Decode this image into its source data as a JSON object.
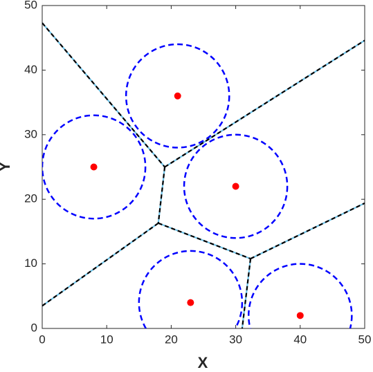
{
  "chart_data": {
    "type": "scatter",
    "xlabel": "X",
    "ylabel": "Y",
    "xlim": [
      0,
      50
    ],
    "ylim": [
      0,
      50
    ],
    "xticks": [
      0,
      10,
      20,
      30,
      40,
      50
    ],
    "yticks": [
      0,
      10,
      20,
      30,
      40,
      50
    ],
    "series": [
      {
        "x": [
          21,
          8,
          30,
          23,
          40
        ],
        "y": [
          36,
          25,
          22,
          4,
          2
        ],
        "radius": [
          8,
          8,
          8,
          8,
          8
        ],
        "color": "#ff0000",
        "circle_color": "#0000ff"
      }
    ],
    "edges": [
      {
        "x": [
          0,
          19
        ],
        "y": [
          47.3,
          25
        ]
      },
      {
        "x": [
          19,
          50
        ],
        "y": [
          25,
          44.6
        ]
      },
      {
        "x": [
          19,
          18
        ],
        "y": [
          25,
          16.3
        ]
      },
      {
        "x": [
          18,
          0
        ],
        "y": [
          16.3,
          3.5
        ]
      },
      {
        "x": [
          18,
          32.3
        ],
        "y": [
          16.3,
          10.8
        ]
      },
      {
        "x": [
          32.3,
          50
        ],
        "y": [
          10.8,
          19.4
        ]
      },
      {
        "x": [
          32.3,
          31
        ],
        "y": [
          10.8,
          0
        ]
      }
    ],
    "edge_color": "#000000",
    "edge_under_color": "#6fc3e8"
  }
}
